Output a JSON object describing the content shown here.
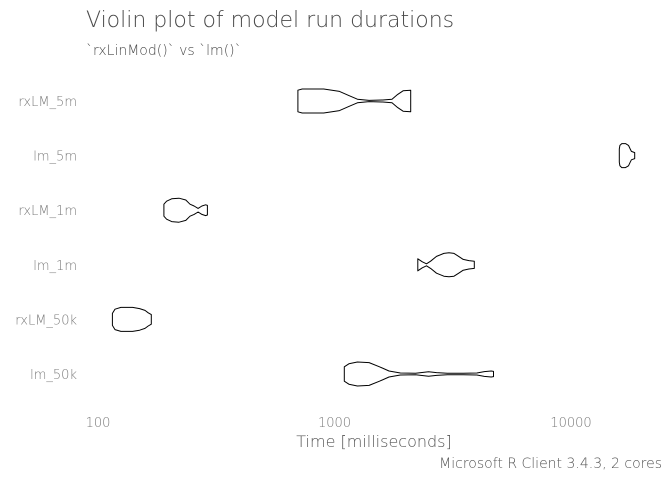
{
  "chart_data": {
    "type": "violin",
    "title": "Violin plot of model run durations",
    "subtitle": "`rxLinMod()` vs `lm()`",
    "xlabel": "Time [milliseconds]",
    "ylabel": "",
    "caption": "Microsoft R Client 3.4.3, 2 cores",
    "x_scale": "log10",
    "xlim": [
      80,
      22000
    ],
    "x_ticks": [
      100,
      1000,
      10000
    ],
    "x_tick_labels": [
      "100",
      "1000",
      "10000"
    ],
    "grid": false,
    "legend": "none",
    "categories": [
      "rxLM_5m",
      "lm_5m",
      "rxLM_1m",
      "lm_1m",
      "rxLM_50k",
      "lm_50k"
    ],
    "series": [
      {
        "category": "rxLM_5m",
        "min": 700,
        "max": 2100,
        "density": [
          [
            700,
            0.9
          ],
          [
            730,
            1.0
          ],
          [
            900,
            1.0
          ],
          [
            1050,
            0.8
          ],
          [
            1150,
            0.45
          ],
          [
            1250,
            0.15
          ],
          [
            1400,
            0.05
          ],
          [
            1600,
            0.08
          ],
          [
            1750,
            0.15
          ],
          [
            1850,
            0.55
          ],
          [
            1950,
            0.85
          ],
          [
            2100,
            0.9
          ]
        ]
      },
      {
        "category": "lm_5m",
        "min": 16000,
        "max": 18600,
        "density": [
          [
            16000,
            0.55
          ],
          [
            16100,
            0.85
          ],
          [
            16400,
            1.0
          ],
          [
            17000,
            1.0
          ],
          [
            17500,
            0.85
          ],
          [
            17800,
            0.55
          ],
          [
            18000,
            0.35
          ],
          [
            18300,
            0.3
          ],
          [
            18600,
            0.25
          ]
        ]
      },
      {
        "category": "rxLM_1m",
        "min": 190,
        "max": 290,
        "density": [
          [
            190,
            0.5
          ],
          [
            195,
            0.75
          ],
          [
            205,
            0.95
          ],
          [
            220,
            1.0
          ],
          [
            235,
            0.85
          ],
          [
            245,
            0.5
          ],
          [
            255,
            0.35
          ],
          [
            265,
            0.15
          ],
          [
            275,
            0.35
          ],
          [
            285,
            0.45
          ],
          [
            290,
            0.4
          ]
        ]
      },
      {
        "category": "lm_1m",
        "min": 2250,
        "max": 3900,
        "density": [
          [
            2250,
            0.5
          ],
          [
            2350,
            0.25
          ],
          [
            2450,
            0.08
          ],
          [
            2550,
            0.3
          ],
          [
            2700,
            0.7
          ],
          [
            2900,
            0.95
          ],
          [
            3050,
            1.0
          ],
          [
            3200,
            0.95
          ],
          [
            3350,
            0.7
          ],
          [
            3500,
            0.45
          ],
          [
            3700,
            0.35
          ],
          [
            3900,
            0.3
          ]
        ]
      },
      {
        "category": "rxLM_50k",
        "min": 115,
        "max": 168,
        "density": [
          [
            115,
            0.5
          ],
          [
            118,
            0.85
          ],
          [
            125,
            1.0
          ],
          [
            140,
            1.0
          ],
          [
            150,
            0.9
          ],
          [
            158,
            0.75
          ],
          [
            163,
            0.55
          ],
          [
            168,
            0.4
          ]
        ]
      },
      {
        "category": "lm_50k",
        "min": 1100,
        "max": 4700,
        "density": [
          [
            1100,
            0.6
          ],
          [
            1150,
            0.85
          ],
          [
            1250,
            1.0
          ],
          [
            1400,
            0.95
          ],
          [
            1550,
            0.6
          ],
          [
            1700,
            0.25
          ],
          [
            1900,
            0.08
          ],
          [
            2200,
            0.06
          ],
          [
            2500,
            0.18
          ],
          [
            2700,
            0.12
          ],
          [
            3000,
            0.06
          ],
          [
            3500,
            0.06
          ],
          [
            4000,
            0.08
          ],
          [
            4300,
            0.2
          ],
          [
            4600,
            0.25
          ],
          [
            4700,
            0.22
          ]
        ]
      }
    ]
  }
}
